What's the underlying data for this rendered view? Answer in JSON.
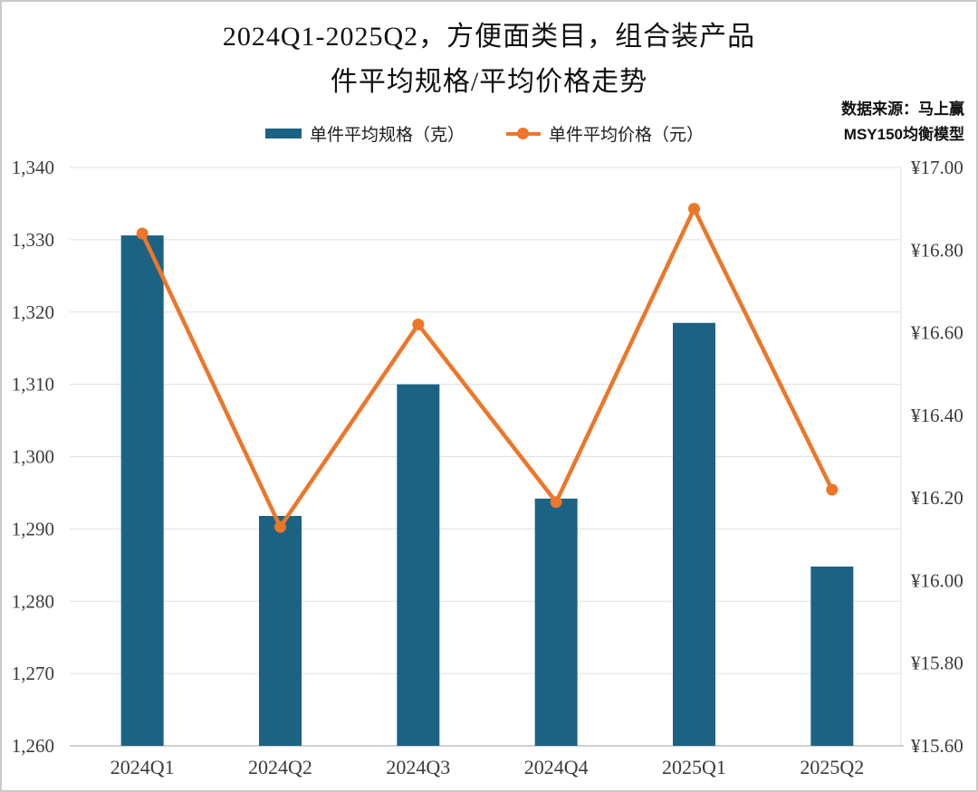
{
  "title": {
    "line1": "2024Q1-2025Q2，方便面类目，组合装产品",
    "line2": "件平均规格/平均价格走势"
  },
  "source": {
    "line1": "数据来源：马上赢",
    "line2": "MSY150均衡模型"
  },
  "legend": {
    "spec_label": "单件平均规格（克）",
    "price_label": "单件平均价格（元）"
  },
  "colors": {
    "bar": "#1C6383",
    "line": "#ED7628",
    "grid": "#E0E0E0",
    "axis": "#BFBFBF",
    "text": "#3B3B3B"
  },
  "chart_data": {
    "type": "bar+line",
    "title": "2024Q1-2025Q2，方便面类目，组合装产品件平均规格/平均价格走势",
    "categories": [
      "2024Q1",
      "2024Q2",
      "2024Q3",
      "2024Q4",
      "2025Q1",
      "2025Q2"
    ],
    "series": [
      {
        "name": "单件平均规格（克）",
        "type": "bar",
        "axis": "left",
        "unit": "克",
        "values": [
          1330.6,
          1291.8,
          1310.0,
          1294.2,
          1318.5,
          1284.8
        ]
      },
      {
        "name": "单件平均价格（元）",
        "type": "line",
        "axis": "right",
        "unit": "元",
        "values": [
          16.84,
          16.13,
          16.62,
          16.19,
          16.9,
          16.22
        ]
      }
    ],
    "left_axis": {
      "min": 1260,
      "max": 1340,
      "step": 10,
      "tick_labels": [
        "1,260",
        "1,270",
        "1,280",
        "1,290",
        "1,300",
        "1,310",
        "1,320",
        "1,330",
        "1,340"
      ]
    },
    "right_axis": {
      "min": 15.6,
      "max": 17.0,
      "step": 0.2,
      "tick_labels": [
        "¥15.60",
        "¥15.80",
        "¥16.00",
        "¥16.20",
        "¥16.40",
        "¥16.60",
        "¥16.80",
        "¥17.00"
      ]
    },
    "grid": true,
    "legend_position": "top"
  }
}
